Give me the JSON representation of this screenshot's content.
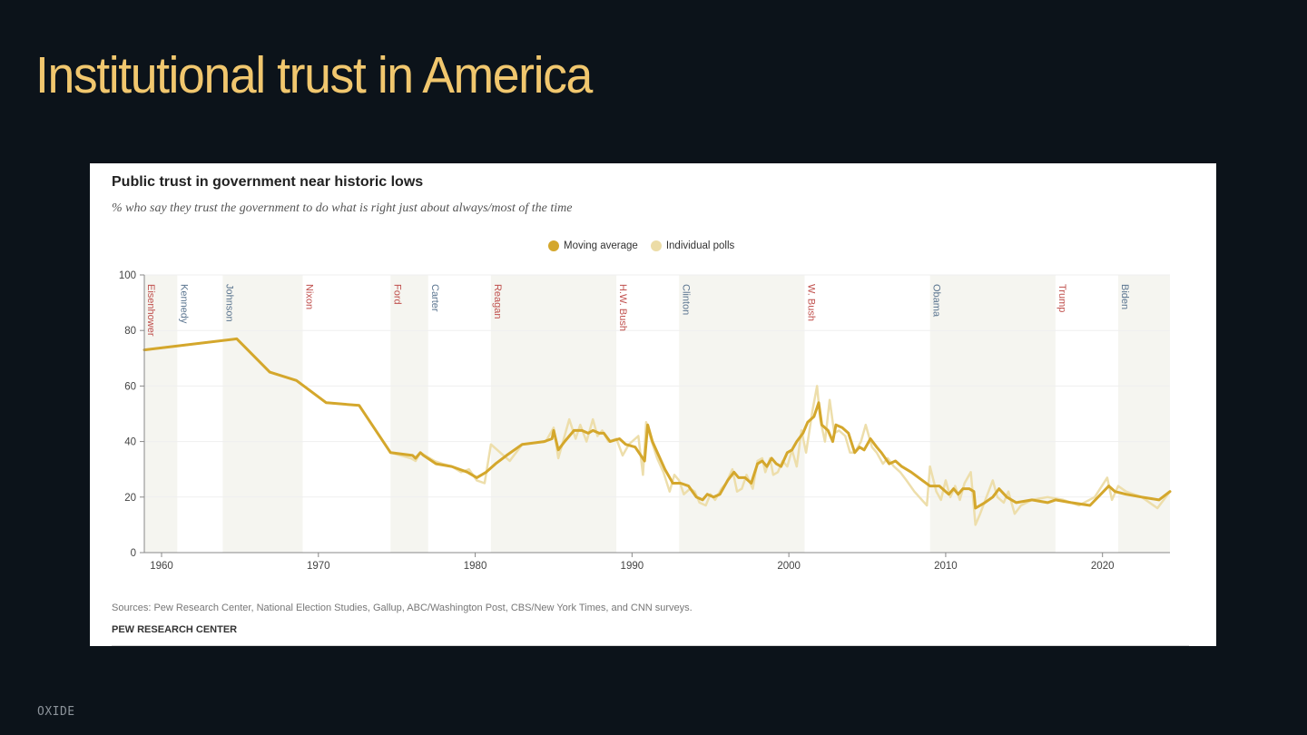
{
  "slide": {
    "title": "Institutional trust in America",
    "footer_brand": "OXIDE",
    "background": "#0c131a",
    "title_color": "#f1c76e"
  },
  "chart_data": {
    "type": "line",
    "title": "Public trust in government near historic lows",
    "subtitle": "% who say they trust the government to do what is right just about always/most of the time",
    "xlabel": "",
    "ylabel": "",
    "xlim": [
      1958.9,
      2024.3
    ],
    "ylim": [
      0,
      100
    ],
    "x_ticks": [
      1960,
      1970,
      1980,
      1990,
      2000,
      2010,
      2020
    ],
    "y_ticks": [
      0,
      20,
      40,
      60,
      80,
      100
    ],
    "grid": "horizontal",
    "legend_position": "top-center",
    "legend": [
      {
        "name": "Moving average",
        "color": "#d4a72c"
      },
      {
        "name": "Individual polls",
        "color": "#ecdca6"
      }
    ],
    "presidents": [
      {
        "name": "Eisenhower",
        "start": 1958.9,
        "end": 1961.0,
        "party": "R",
        "shaded": true
      },
      {
        "name": "Kennedy",
        "start": 1961.0,
        "end": 1963.9,
        "party": "D",
        "shaded": false
      },
      {
        "name": "Johnson",
        "start": 1963.9,
        "end": 1969.0,
        "party": "D",
        "shaded": true
      },
      {
        "name": "Nixon",
        "start": 1969.0,
        "end": 1974.6,
        "party": "R",
        "shaded": false
      },
      {
        "name": "Ford",
        "start": 1974.6,
        "end": 1977.0,
        "party": "R",
        "shaded": true
      },
      {
        "name": "Carter",
        "start": 1977.0,
        "end": 1981.0,
        "party": "D",
        "shaded": false
      },
      {
        "name": "Reagan",
        "start": 1981.0,
        "end": 1989.0,
        "party": "R",
        "shaded": true
      },
      {
        "name": "H.W. Bush",
        "start": 1989.0,
        "end": 1993.0,
        "party": "R",
        "shaded": false
      },
      {
        "name": "Clinton",
        "start": 1993.0,
        "end": 2001.0,
        "party": "D",
        "shaded": true
      },
      {
        "name": "W. Bush",
        "start": 2001.0,
        "end": 2009.0,
        "party": "R",
        "shaded": false
      },
      {
        "name": "Obama",
        "start": 2009.0,
        "end": 2017.0,
        "party": "D",
        "shaded": true
      },
      {
        "name": "Trump",
        "start": 2017.0,
        "end": 2021.0,
        "party": "R",
        "shaded": false
      },
      {
        "name": "Biden",
        "start": 2021.0,
        "end": 2024.3,
        "party": "D",
        "shaded": true
      }
    ],
    "party_colors": {
      "R": "#c0504d",
      "D": "#5b7590"
    },
    "shade_color": "#f5f5f0",
    "series": [
      {
        "name": "Moving average",
        "color": "#d4a72c",
        "x": [
          1958.9,
          1964.8,
          1966.9,
          1968.6,
          1970.5,
          1972.6,
          1974.6,
          1976.0,
          1976.2,
          1976.5,
          1976.7,
          1977.5,
          1978.5,
          1979.5,
          1980.1,
          1980.7,
          1981.3,
          1982.0,
          1983.0,
          1984.4,
          1984.9,
          1985.0,
          1985.3,
          1985.7,
          1986.3,
          1986.8,
          1987.2,
          1987.5,
          1987.9,
          1988.2,
          1988.6,
          1989.2,
          1989.6,
          1990.2,
          1990.8,
          1991.0,
          1991.3,
          1991.7,
          1992.1,
          1992.6,
          1993.1,
          1993.6,
          1994.1,
          1994.5,
          1994.8,
          1995.2,
          1995.6,
          1996.1,
          1996.5,
          1996.8,
          1997.2,
          1997.6,
          1998.0,
          1998.3,
          1998.6,
          1998.9,
          1999.2,
          1999.5,
          1999.9,
          2000.2,
          2000.5,
          2000.9,
          2001.2,
          2001.6,
          2001.9,
          2002.1,
          2002.5,
          2002.8,
          2003.0,
          2003.4,
          2003.8,
          2004.2,
          2004.5,
          2004.8,
          2005.2,
          2005.6,
          2005.9,
          2006.4,
          2006.8,
          2007.2,
          2007.8,
          2009.0,
          2009.6,
          2010.0,
          2010.2,
          2010.5,
          2010.8,
          2011.1,
          2011.5,
          2011.8,
          2011.9,
          2012.5,
          2013.0,
          2013.4,
          2013.9,
          2014.2,
          2014.5,
          2015.5,
          2016.5,
          2017.0,
          2018.0,
          2019.2,
          2020.4,
          2020.8,
          2021.5,
          2022.5,
          2023.6,
          2024.3
        ],
        "values": [
          73,
          77,
          65,
          62,
          54,
          53,
          36,
          35,
          34,
          36,
          35,
          32,
          31,
          29,
          27,
          29,
          32,
          35,
          39,
          40,
          41,
          44,
          37,
          40,
          44,
          44,
          43,
          44,
          43,
          43,
          40,
          41,
          39,
          38,
          33,
          46,
          40,
          35,
          30,
          25,
          25,
          24,
          20,
          19,
          21,
          20,
          21,
          26,
          29,
          27,
          27,
          25,
          32,
          33,
          31,
          34,
          32,
          31,
          36,
          37,
          40,
          43,
          47,
          49,
          54,
          46,
          44,
          40,
          46,
          45,
          43,
          36,
          38,
          37,
          41,
          38,
          36,
          32,
          33,
          31,
          29,
          24,
          24,
          22,
          21,
          23,
          21,
          23,
          23,
          22,
          16,
          18,
          20,
          23,
          20,
          19,
          18,
          19,
          18,
          19,
          18,
          17,
          24,
          22,
          21,
          20,
          19,
          22
        ]
      },
      {
        "name": "Individual polls",
        "color": "#ecdca6",
        "x": [
          1958.9,
          1964.8,
          1966.9,
          1968.6,
          1970.5,
          1972.6,
          1974.6,
          1975.9,
          1976.2,
          1976.5,
          1976.8,
          1977.4,
          1977.9,
          1978.5,
          1979.1,
          1979.6,
          1980.1,
          1980.6,
          1981.0,
          1981.6,
          1982.2,
          1983.0,
          1984.5,
          1985.0,
          1985.3,
          1985.6,
          1986.0,
          1986.4,
          1986.7,
          1987.1,
          1987.5,
          1987.8,
          1988.1,
          1988.5,
          1989.0,
          1989.4,
          1989.8,
          1990.4,
          1990.7,
          1990.9,
          1991.2,
          1991.6,
          1992.0,
          1992.4,
          1992.7,
          1993.0,
          1993.3,
          1993.7,
          1994.0,
          1994.3,
          1994.7,
          1995.0,
          1995.3,
          1995.7,
          1996.0,
          1996.4,
          1996.7,
          1997.0,
          1997.3,
          1997.7,
          1998.0,
          1998.3,
          1998.5,
          1998.8,
          1999.0,
          1999.3,
          1999.6,
          1999.9,
          2000.2,
          2000.5,
          2000.8,
          2001.1,
          2001.5,
          2001.8,
          2002.0,
          2002.3,
          2002.6,
          2002.9,
          2003.2,
          2003.6,
          2003.9,
          2004.2,
          2004.6,
          2004.9,
          2005.3,
          2005.6,
          2006.0,
          2006.3,
          2006.7,
          2007.1,
          2007.5,
          2008.0,
          2008.8,
          2009.0,
          2009.4,
          2009.7,
          2010.0,
          2010.3,
          2010.6,
          2010.9,
          2011.2,
          2011.6,
          2011.9,
          2012.2,
          2012.6,
          2013.0,
          2013.3,
          2013.7,
          2014.0,
          2014.4,
          2014.8,
          2015.5,
          2016.5,
          2017.5,
          2018.5,
          2019.5,
          2020.3,
          2020.6,
          2021.0,
          2021.5,
          2022.5,
          2023.5,
          2024.3
        ],
        "values": [
          73,
          77,
          65,
          62,
          54,
          53,
          36,
          34,
          33,
          36,
          35,
          33,
          32,
          31,
          29,
          30,
          26,
          25,
          39,
          36,
          33,
          39,
          40,
          45,
          34,
          40,
          48,
          41,
          46,
          40,
          48,
          42,
          44,
          40,
          41,
          35,
          39,
          42,
          28,
          47,
          41,
          34,
          29,
          22,
          28,
          26,
          21,
          23,
          22,
          18,
          17,
          21,
          19,
          23,
          25,
          30,
          22,
          23,
          28,
          23,
          33,
          34,
          29,
          34,
          28,
          29,
          33,
          31,
          37,
          31,
          44,
          36,
          51,
          60,
          48,
          40,
          55,
          43,
          44,
          42,
          36,
          36,
          40,
          46,
          38,
          36,
          32,
          34,
          31,
          29,
          26,
          22,
          17,
          31,
          22,
          19,
          26,
          20,
          24,
          19,
          25,
          29,
          10,
          14,
          20,
          26,
          20,
          18,
          22,
          14,
          17,
          19,
          20,
          19,
          17,
          20,
          27,
          19,
          24,
          22,
          20,
          16,
          22
        ]
      }
    ],
    "source": "Sources: Pew Research Center, National Election Studies, Gallup, ABC/Washington Post, CBS/New York Times, and CNN surveys.",
    "brand": "PEW RESEARCH CENTER"
  }
}
